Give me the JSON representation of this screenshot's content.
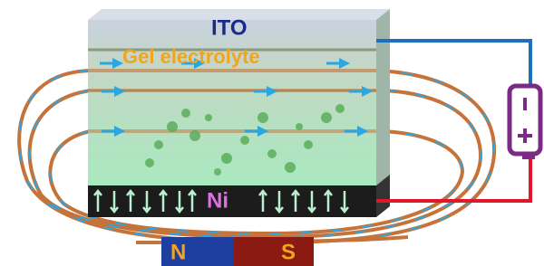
{
  "labels": {
    "ito": "ITO",
    "gel": "Gel electrolyte",
    "ni": "Ni",
    "north": "N",
    "south": "S"
  }
}
